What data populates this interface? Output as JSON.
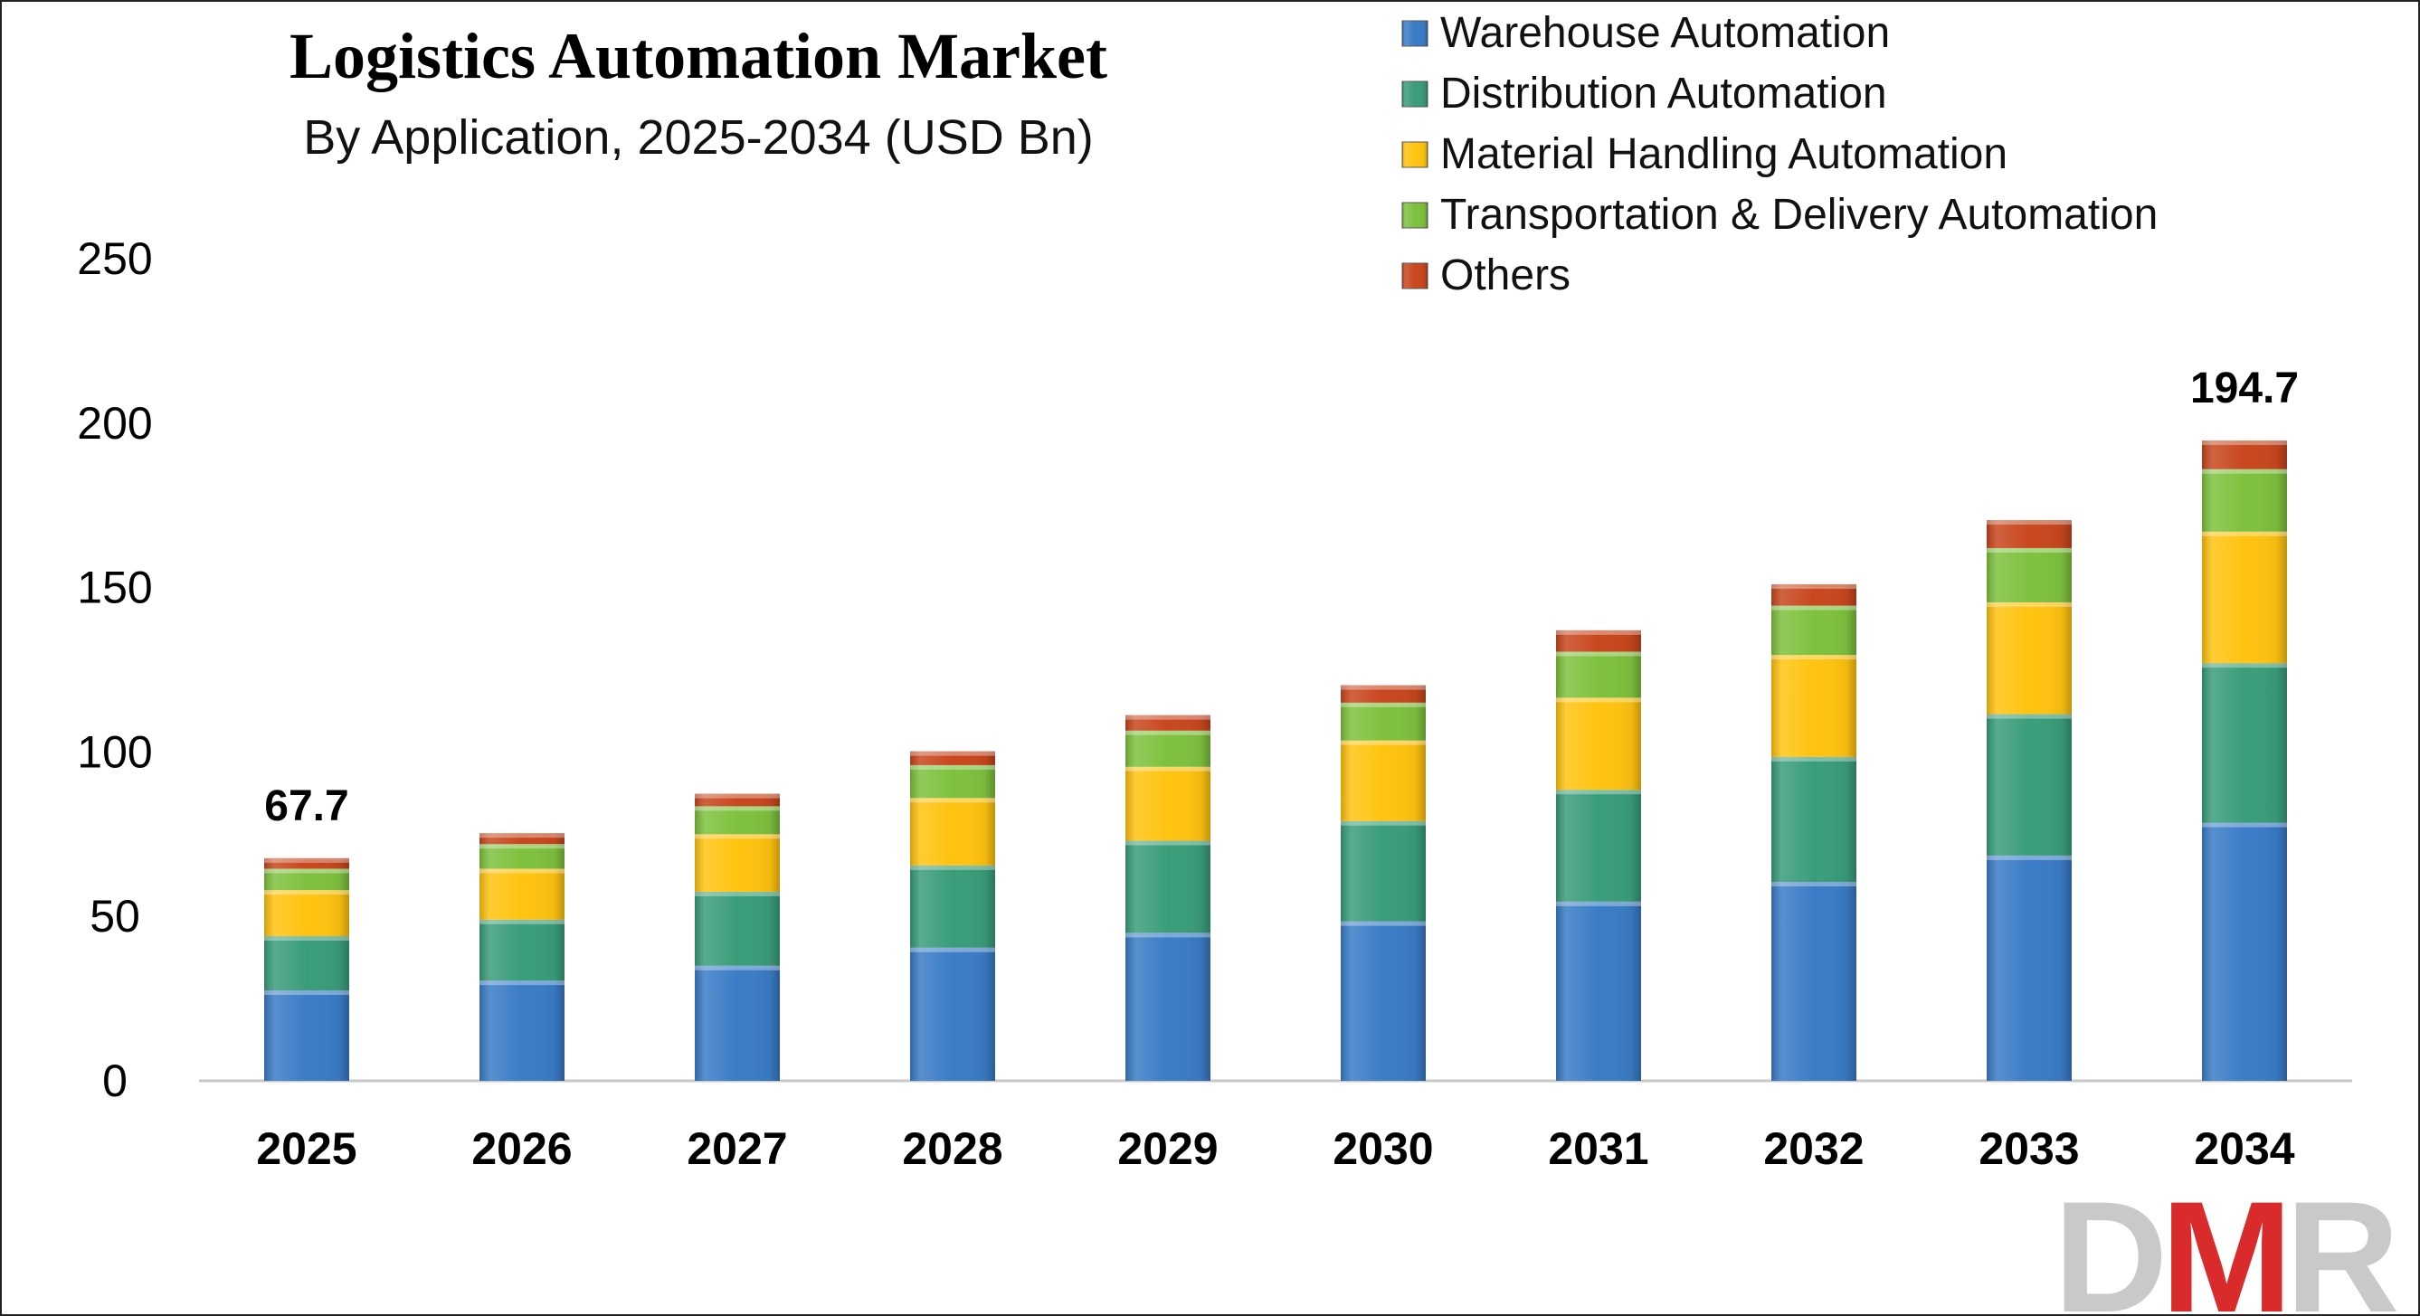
{
  "chart_data": {
    "type": "bar",
    "stacked": true,
    "title": "Logistics Automation Market",
    "subtitle": "By Application, 2025-2034 (USD Bn)",
    "categories": [
      "2025",
      "2026",
      "2027",
      "2028",
      "2029",
      "2030",
      "2031",
      "2032",
      "2033",
      "2034"
    ],
    "ylim": [
      0,
      250
    ],
    "yticks": [
      "0",
      "50",
      "100",
      "150",
      "200",
      "250"
    ],
    "grid": false,
    "legend_position": "top-right",
    "series": [
      {
        "name": "Warehouse Automation",
        "color": "#3a7cc6",
        "values": [
          27.5,
          30.5,
          35,
          40.5,
          45,
          48.5,
          54.5,
          60.5,
          68.5,
          78.5
        ]
      },
      {
        "name": "Distribution Automation",
        "color": "#3a9d7a",
        "values": [
          16.5,
          18.5,
          22.5,
          25,
          28,
          30.5,
          34,
          38,
          43,
          48.5
        ]
      },
      {
        "name": "Material Handling Automation",
        "color": "#ffc310",
        "values": [
          14,
          15.5,
          17.5,
          20.5,
          22.5,
          24.5,
          28,
          31,
          34,
          40
        ]
      },
      {
        "name": "Transportation & Delivery Automation",
        "color": "#7ec13e",
        "values": [
          6.5,
          7.5,
          8.5,
          10,
          11,
          11.5,
          14,
          15,
          16.5,
          19
        ]
      },
      {
        "name": "Others",
        "color": "#c8471e",
        "values": [
          3.2,
          3.3,
          3.8,
          4.2,
          4.7,
          5.3,
          6.5,
          6.5,
          8.5,
          8.7
        ]
      }
    ],
    "total_labels": [
      {
        "category": "2025",
        "value": 67.7,
        "text": "67.7"
      },
      {
        "category": "2034",
        "value": 194.7,
        "text": "194.7"
      }
    ]
  },
  "logo": {
    "text": "DMR",
    "colors": [
      "#c9c9c9",
      "#d92b2b"
    ]
  }
}
